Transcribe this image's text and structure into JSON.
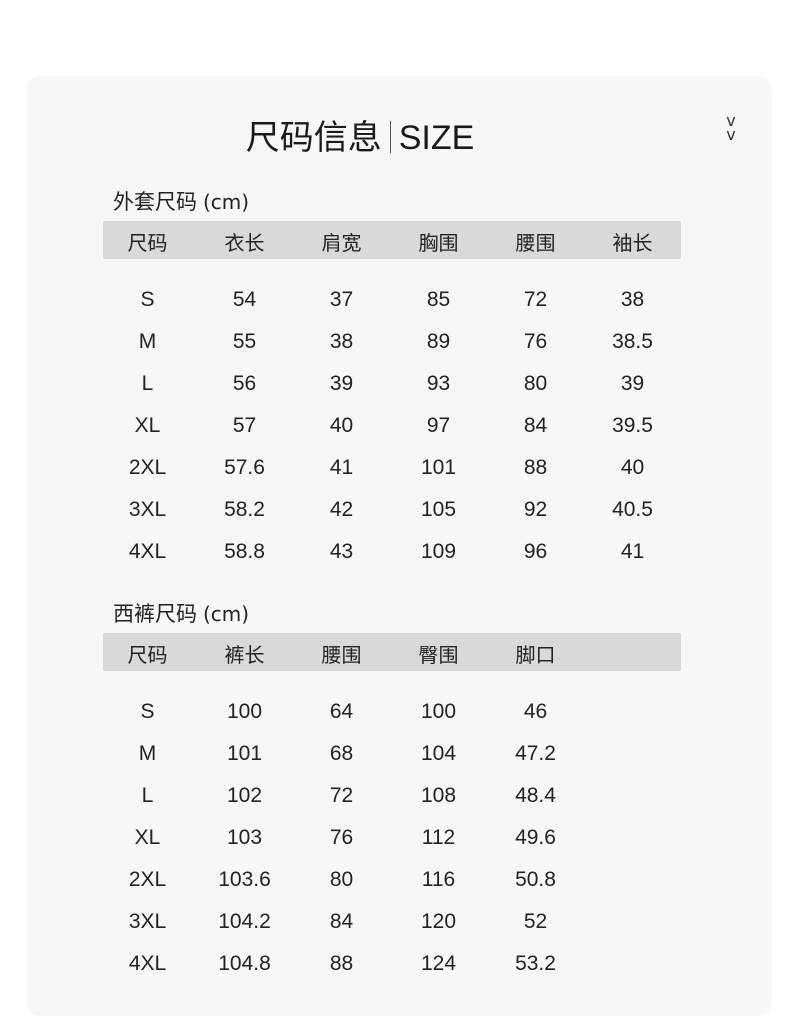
{
  "title": {
    "cn": "尺码信息",
    "en": "SIZE"
  },
  "chevron_icon": "double-chevron-down",
  "jacket": {
    "label": "外套尺码",
    "unit": "(cm)",
    "headers": [
      "尺码",
      "衣长",
      "肩宽",
      "胸围",
      "腰围",
      "袖长"
    ],
    "rows": [
      [
        "S",
        "54",
        "37",
        "85",
        "72",
        "38"
      ],
      [
        "M",
        "55",
        "38",
        "89",
        "76",
        "38.5"
      ],
      [
        "L",
        "56",
        "39",
        "93",
        "80",
        "39"
      ],
      [
        "XL",
        "57",
        "40",
        "97",
        "84",
        "39.5"
      ],
      [
        "2XL",
        "57.6",
        "41",
        "101",
        "88",
        "40"
      ],
      [
        "3XL",
        "58.2",
        "42",
        "105",
        "92",
        "40.5"
      ],
      [
        "4XL",
        "58.8",
        "43",
        "109",
        "96",
        "41"
      ]
    ]
  },
  "trousers": {
    "label": "西裤尺码",
    "unit": "(cm)",
    "headers": [
      "尺码",
      "裤长",
      "腰围",
      "臀围",
      "脚口"
    ],
    "rows": [
      [
        "S",
        "100",
        "64",
        "100",
        "46"
      ],
      [
        "M",
        "101",
        "68",
        "104",
        "47.2"
      ],
      [
        "L",
        "102",
        "72",
        "108",
        "48.4"
      ],
      [
        "XL",
        "103",
        "76",
        "112",
        "49.6"
      ],
      [
        "2XL",
        "103.6",
        "80",
        "116",
        "50.8"
      ],
      [
        "3XL",
        "104.2",
        "84",
        "120",
        "52"
      ],
      [
        "4XL",
        "104.8",
        "88",
        "124",
        "53.2"
      ]
    ]
  },
  "colors": {
    "panel": "#f7f7f7",
    "header": "#d9d9d9"
  }
}
